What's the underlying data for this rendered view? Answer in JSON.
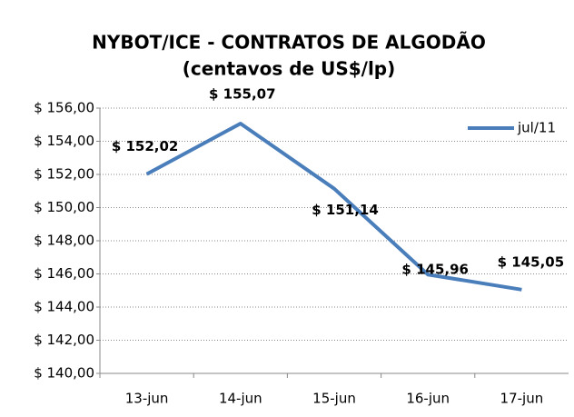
{
  "chart_data": {
    "type": "line",
    "title": "NYBOT/ICE - CONTRATOS DE ALGODÃO",
    "subtitle": "(centavos de US$/lp)",
    "categories": [
      "13-jun",
      "14-jun",
      "15-jun",
      "16-jun",
      "17-jun"
    ],
    "series": [
      {
        "name": "jul/11",
        "color": "#4a7ebb",
        "values": [
          152.02,
          155.07,
          151.14,
          145.96,
          145.05
        ],
        "value_labels": [
          "$ 152,02",
          "$ 155,07",
          "$ 151,14",
          "$ 145,96",
          "$ 145,05"
        ]
      }
    ],
    "ylim": [
      140,
      156
    ],
    "yticks": [
      {
        "value": 140,
        "label": "$ 140,00"
      },
      {
        "value": 142,
        "label": "$ 142,00"
      },
      {
        "value": 144,
        "label": "$ 144,00"
      },
      {
        "value": 146,
        "label": "$ 146,00"
      },
      {
        "value": 148,
        "label": "$ 148,00"
      },
      {
        "value": 150,
        "label": "$ 150,00"
      },
      {
        "value": 152,
        "label": "$ 152,00"
      },
      {
        "value": 154,
        "label": "$ 154,00"
      },
      {
        "value": 156,
        "label": "$ 156,00"
      }
    ],
    "grid": true,
    "legend": "top-right"
  }
}
